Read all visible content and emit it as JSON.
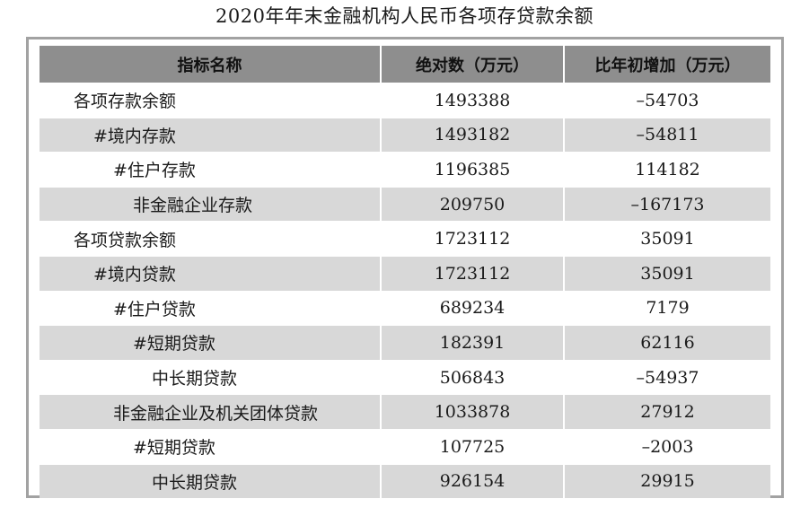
{
  "title": "2020年年末金融机构人民币各项存贷款余额",
  "table": {
    "headers": [
      "指标名称",
      "绝对数（万元）",
      "比年初增加（万元）"
    ],
    "rows": [
      {
        "name": "各项存款余额",
        "value": "1493388",
        "change": "–54703"
      },
      {
        "name": "#境内存款",
        "value": "1493182",
        "change": "–54811"
      },
      {
        "name": "#住户存款",
        "value": "1196385",
        "change": "114182"
      },
      {
        "name": "非金融企业存款",
        "value": "209750",
        "change": "–167173"
      },
      {
        "name": "各项贷款余额",
        "value": "1723112",
        "change": "35091"
      },
      {
        "name": "#境内贷款",
        "value": "1723112",
        "change": "35091"
      },
      {
        "name": "#住户贷款",
        "value": "689234",
        "change": "7179"
      },
      {
        "name": "#短期贷款",
        "value": "182391",
        "change": "62116"
      },
      {
        "name": "中长期贷款",
        "value": "506843",
        "change": "–54937"
      },
      {
        "name": "非金融企业及机关团体贷款",
        "value": "1033878",
        "change": "27912"
      },
      {
        "name": "#短期贷款",
        "value": "107725",
        "change": "–2003"
      },
      {
        "name": "中长期贷款",
        "value": "926154",
        "change": "29915"
      }
    ]
  }
}
